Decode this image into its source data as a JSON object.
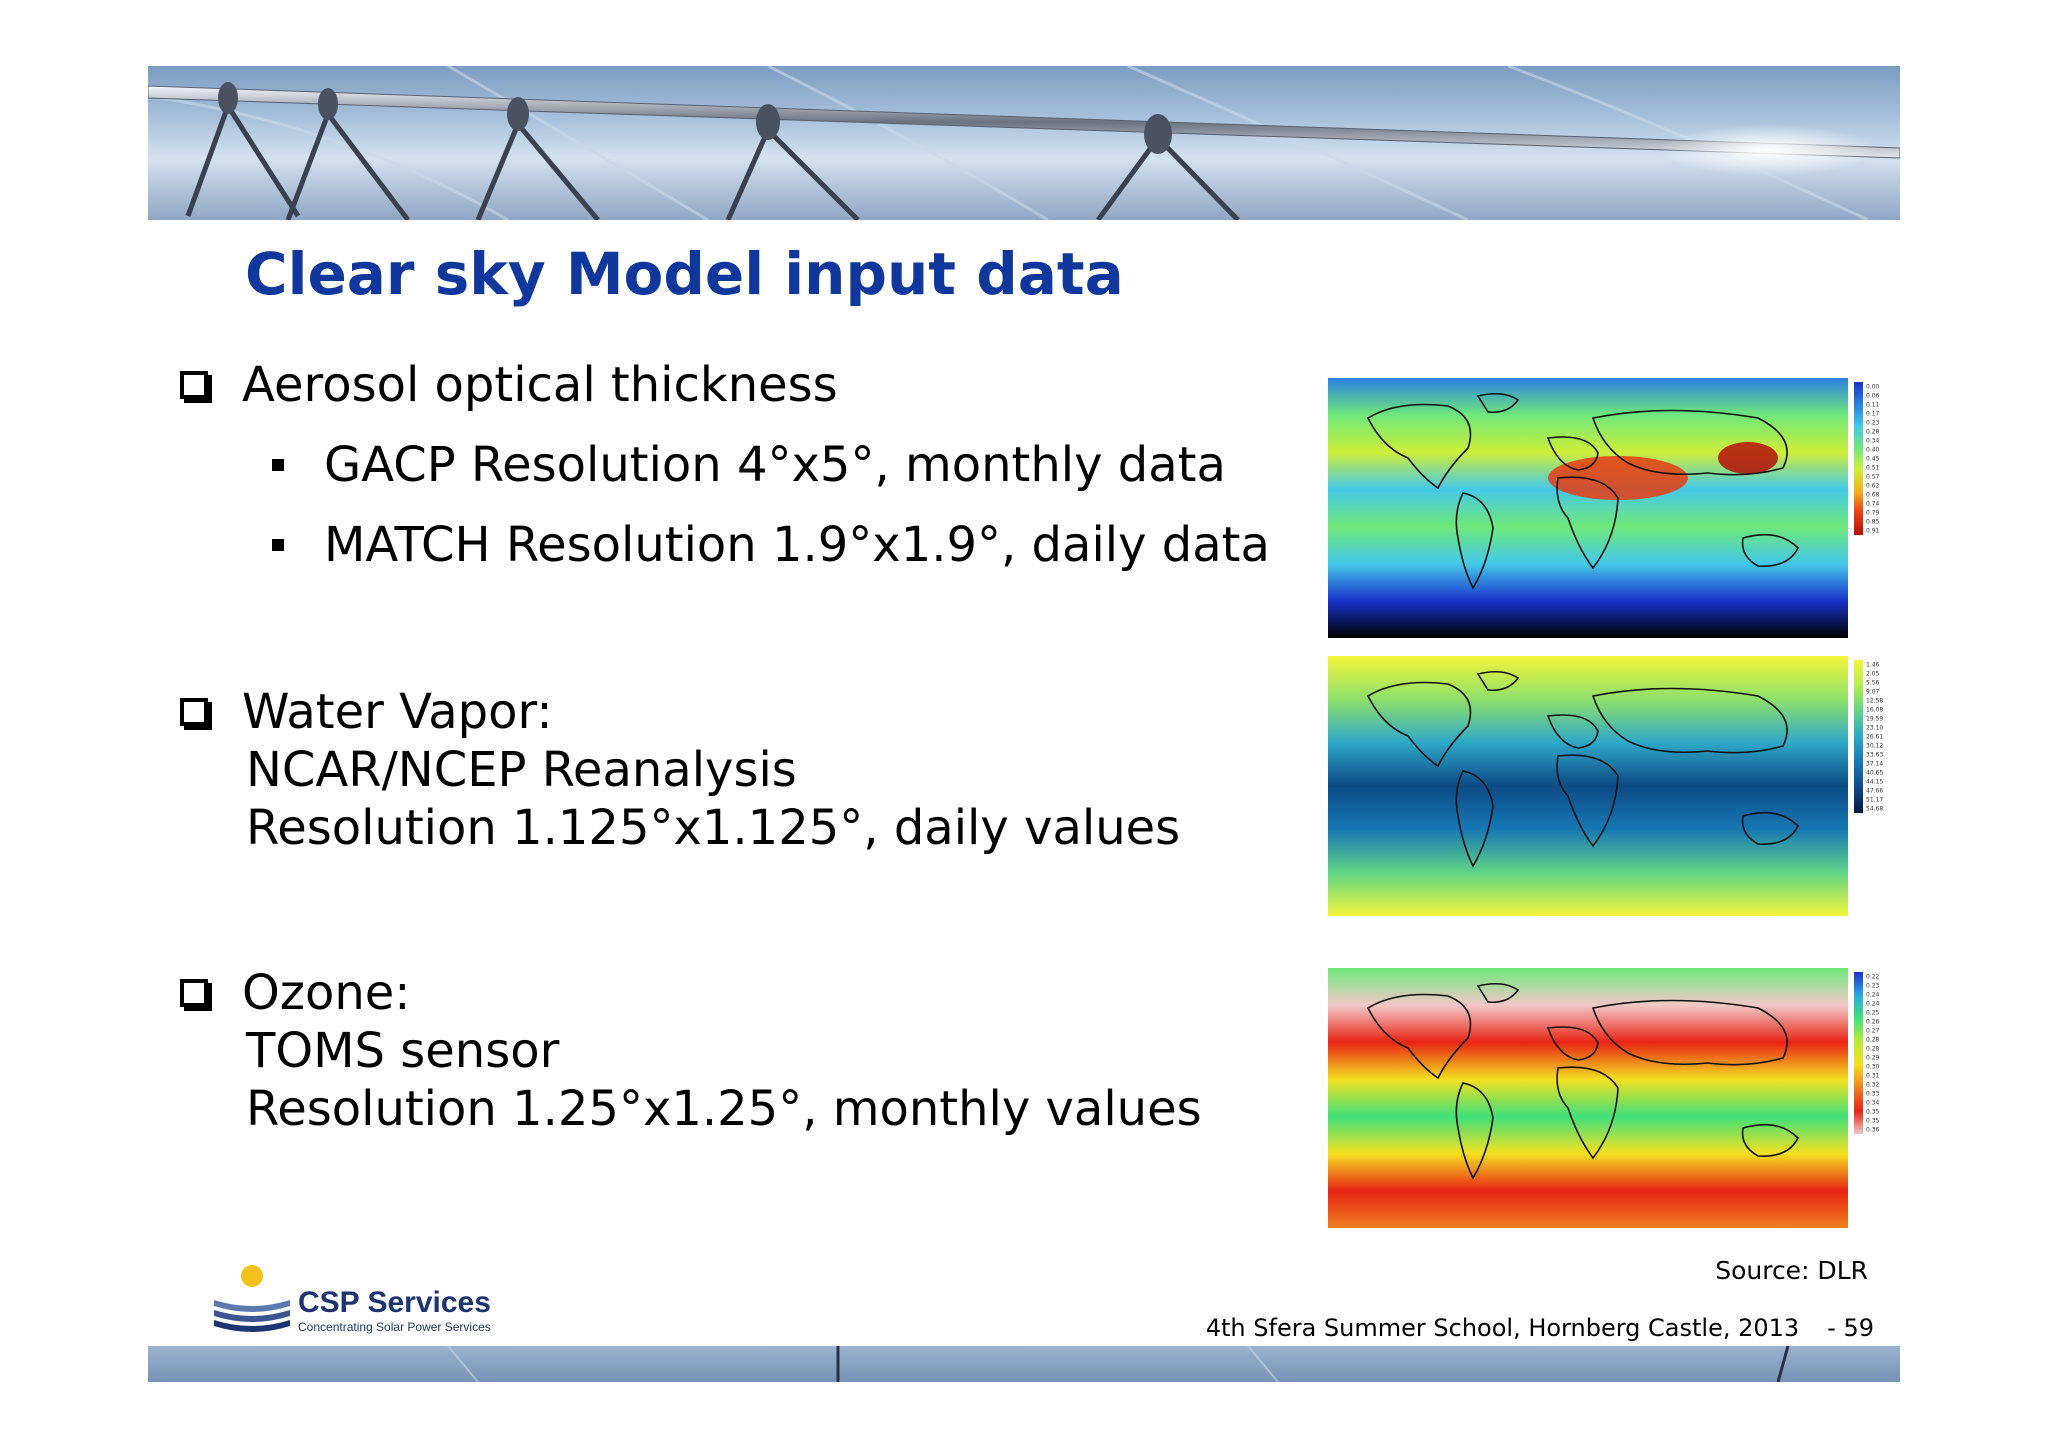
{
  "title": "Clear sky Model input data",
  "sections": [
    {
      "label": "Aerosol optical thickness",
      "items": [
        "GACP Resolution 4°x5°, monthly data",
        "MATCH Resolution 1.9°x1.9°, daily data"
      ]
    },
    {
      "label": "Water Vapor:",
      "lines": [
        "NCAR/NCEP Reanalysis",
        "Resolution 1.125°x1.125°, daily values"
      ]
    },
    {
      "label": "Ozone:",
      "lines": [
        "TOMS sensor",
        "Resolution 1.25°x1.25°, monthly values"
      ]
    }
  ],
  "maps": [
    {
      "name": "aerosol-map",
      "legend": [
        "0.00",
        "0.06",
        "0.11",
        "0.17",
        "0.23",
        "0.28",
        "0.34",
        "0.40",
        "0.45",
        "0.51",
        "0.57",
        "0.62",
        "0.68",
        "0.74",
        "0.79",
        "0.85",
        "0.91"
      ],
      "colors": [
        "#1a33cc",
        "#2b7fe0",
        "#44c8e8",
        "#6fe87a",
        "#cfee3a",
        "#f2b020",
        "#e83c14",
        "#b41008"
      ]
    },
    {
      "name": "water-vapor-map",
      "legend": [
        "1.46",
        "2.05",
        "5.56",
        "9.07",
        "12.58",
        "16.08",
        "19.59",
        "23.10",
        "26.61",
        "30.12",
        "33.63",
        "37.14",
        "40.65",
        "44.15",
        "47.66",
        "51.17",
        "54.68"
      ],
      "colors": [
        "#f4f43a",
        "#b6ec52",
        "#5fd486",
        "#2ea8c8",
        "#1778b4",
        "#0d4a86",
        "#051a44"
      ]
    },
    {
      "name": "ozone-map",
      "legend": [
        "0.22",
        "0.23",
        "0.24",
        "0.24",
        "0.25",
        "0.26",
        "0.27",
        "0.28",
        "0.28",
        "0.29",
        "0.30",
        "0.31",
        "0.32",
        "0.33",
        "0.34",
        "0.35",
        "0.35",
        "0.36"
      ],
      "colors": [
        "#1a33cc",
        "#2fa8e0",
        "#3fe07a",
        "#b8ec3a",
        "#f4e020",
        "#f08020",
        "#e82414",
        "#f2c8c8"
      ]
    }
  ],
  "source": "Source: DLR",
  "footer": {
    "event": "4th Sfera Summer School, Hornberg Castle, 2013",
    "page": "- 59"
  },
  "logo": {
    "name": "CSP Services",
    "tagline": "Concentrating Solar Power Services"
  }
}
